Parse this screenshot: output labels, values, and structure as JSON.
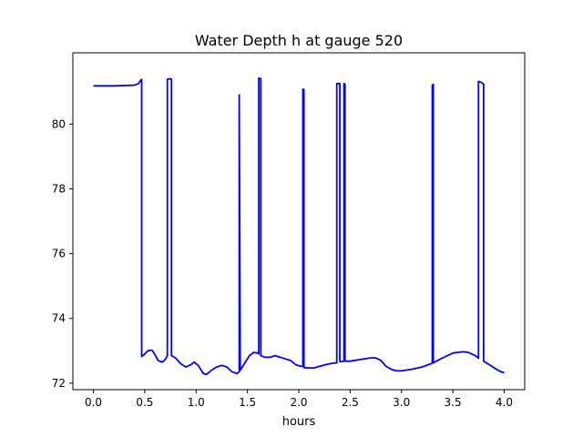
{
  "chart_data": {
    "type": "line",
    "title": "Water Depth h at gauge 520",
    "xlabel": "hours",
    "ylabel": "",
    "xlim": [
      -0.2,
      4.2
    ],
    "ylim": [
      71.8,
      82.2
    ],
    "x_ticks": [
      0.0,
      0.5,
      1.0,
      1.5,
      2.0,
      2.5,
      3.0,
      3.5,
      4.0
    ],
    "x_tick_labels": [
      "0.0",
      "0.5",
      "1.0",
      "1.5",
      "2.0",
      "2.5",
      "3.0",
      "3.5",
      "4.0"
    ],
    "y_ticks": [
      72,
      74,
      76,
      78,
      80
    ],
    "y_tick_labels": [
      "72",
      "74",
      "76",
      "78",
      "80"
    ],
    "grid": false,
    "series": [
      {
        "color": "#0000ff",
        "points": [
          [
            0.0,
            81.18
          ],
          [
            0.2,
            81.18
          ],
          [
            0.4,
            81.2
          ],
          [
            0.44,
            81.25
          ],
          [
            0.46,
            81.35
          ],
          [
            0.47,
            81.38
          ],
          [
            0.47,
            72.82
          ],
          [
            0.5,
            72.9
          ],
          [
            0.53,
            73.0
          ],
          [
            0.57,
            73.02
          ],
          [
            0.6,
            72.88
          ],
          [
            0.63,
            72.7
          ],
          [
            0.67,
            72.65
          ],
          [
            0.7,
            72.73
          ],
          [
            0.72,
            72.85
          ],
          [
            0.72,
            81.38
          ],
          [
            0.75,
            81.4
          ],
          [
            0.76,
            81.38
          ],
          [
            0.76,
            72.85
          ],
          [
            0.8,
            72.78
          ],
          [
            0.85,
            72.6
          ],
          [
            0.9,
            72.5
          ],
          [
            0.95,
            72.57
          ],
          [
            0.98,
            72.65
          ],
          [
            1.02,
            72.55
          ],
          [
            1.07,
            72.3
          ],
          [
            1.1,
            72.27
          ],
          [
            1.15,
            72.4
          ],
          [
            1.2,
            72.5
          ],
          [
            1.25,
            72.55
          ],
          [
            1.3,
            72.5
          ],
          [
            1.35,
            72.35
          ],
          [
            1.4,
            72.3
          ],
          [
            1.42,
            72.35
          ],
          [
            1.42,
            80.9
          ],
          [
            1.43,
            72.4
          ],
          [
            1.47,
            72.6
          ],
          [
            1.52,
            72.85
          ],
          [
            1.56,
            72.95
          ],
          [
            1.6,
            72.93
          ],
          [
            1.61,
            72.9
          ],
          [
            1.61,
            81.42
          ],
          [
            1.63,
            81.4
          ],
          [
            1.63,
            72.85
          ],
          [
            1.67,
            72.8
          ],
          [
            1.72,
            72.8
          ],
          [
            1.77,
            72.85
          ],
          [
            1.8,
            72.82
          ],
          [
            1.87,
            72.75
          ],
          [
            1.92,
            72.7
          ],
          [
            1.97,
            72.57
          ],
          [
            2.02,
            72.52
          ],
          [
            2.04,
            72.52
          ],
          [
            2.04,
            81.08
          ],
          [
            2.05,
            81.06
          ],
          [
            2.05,
            72.48
          ],
          [
            2.1,
            72.47
          ],
          [
            2.15,
            72.47
          ],
          [
            2.2,
            72.52
          ],
          [
            2.3,
            72.6
          ],
          [
            2.37,
            72.63
          ],
          [
            2.37,
            81.25
          ],
          [
            2.4,
            81.25
          ],
          [
            2.4,
            72.66
          ],
          [
            2.44,
            72.68
          ],
          [
            2.44,
            81.25
          ],
          [
            2.45,
            81.23
          ],
          [
            2.45,
            72.68
          ],
          [
            2.5,
            72.68
          ],
          [
            2.6,
            72.73
          ],
          [
            2.7,
            72.78
          ],
          [
            2.75,
            72.78
          ],
          [
            2.8,
            72.7
          ],
          [
            2.85,
            72.52
          ],
          [
            2.9,
            72.43
          ],
          [
            2.95,
            72.38
          ],
          [
            3.0,
            72.38
          ],
          [
            3.1,
            72.43
          ],
          [
            3.2,
            72.5
          ],
          [
            3.27,
            72.58
          ],
          [
            3.3,
            72.62
          ],
          [
            3.3,
            81.18
          ],
          [
            3.31,
            81.23
          ],
          [
            3.31,
            72.63
          ],
          [
            3.4,
            72.78
          ],
          [
            3.5,
            72.93
          ],
          [
            3.6,
            72.97
          ],
          [
            3.65,
            72.95
          ],
          [
            3.72,
            72.85
          ],
          [
            3.75,
            72.77
          ],
          [
            3.75,
            81.32
          ],
          [
            3.78,
            81.28
          ],
          [
            3.8,
            81.23
          ],
          [
            3.8,
            72.68
          ],
          [
            3.85,
            72.58
          ],
          [
            3.9,
            72.48
          ],
          [
            3.95,
            72.38
          ],
          [
            4.0,
            72.32
          ]
        ]
      }
    ]
  }
}
